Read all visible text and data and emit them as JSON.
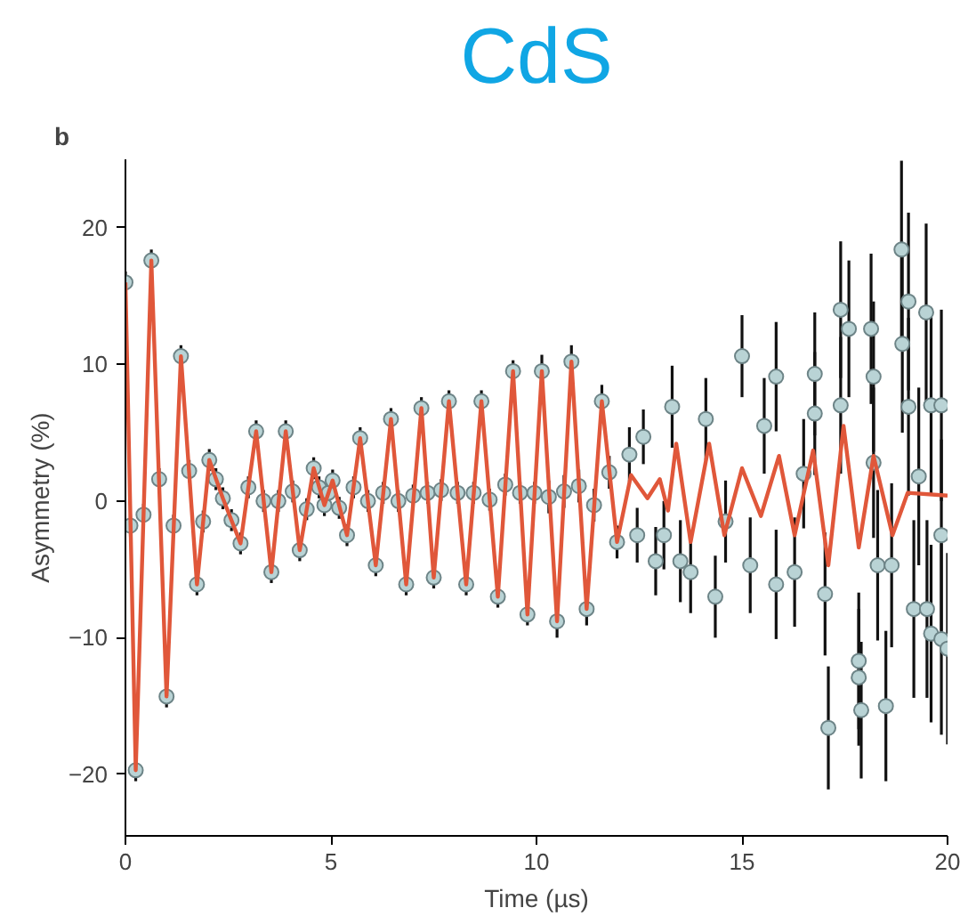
{
  "chart_data": {
    "type": "scatter",
    "title": "CdS",
    "xlabel": "Time (µs)",
    "ylabel": "Asymmetry (%)",
    "annotations": [
      "b"
    ],
    "xlim": [
      0,
      20
    ],
    "ylim": [
      -24.5,
      25
    ],
    "xticks": [
      0,
      5,
      10,
      15,
      20
    ],
    "yticks": [
      {
        "value": -20,
        "label": "−20"
      },
      {
        "value": -10,
        "label": "−10"
      },
      0,
      10,
      20
    ],
    "grid": false,
    "series": [
      {
        "color": "#b9d3d5",
        "marker": "circle",
        "x": [
          0,
          0.12,
          0.25,
          0.44,
          0.63,
          0.82,
          1.0,
          1.17,
          1.35,
          1.55,
          1.74,
          1.89,
          2.04,
          2.2,
          2.37,
          2.58,
          2.8,
          2.99,
          3.18,
          3.36,
          3.55,
          3.72,
          3.9,
          4.07,
          4.24,
          4.41,
          4.58,
          4.71,
          4.84,
          4.94,
          5.04,
          5.2,
          5.39,
          5.55,
          5.71,
          5.9,
          6.09,
          6.27,
          6.46,
          6.64,
          6.83,
          7.0,
          7.2,
          7.35,
          7.5,
          7.68,
          7.87,
          8.08,
          8.29,
          8.47,
          8.66,
          8.86,
          9.06,
          9.24,
          9.43,
          9.6,
          9.78,
          9.95,
          10.13,
          10.3,
          10.5,
          10.67,
          10.85,
          11.03,
          11.22,
          11.4,
          11.59,
          11.77,
          11.96,
          12.26,
          12.45,
          12.6,
          12.9,
          13.1,
          13.3,
          13.5,
          13.75,
          14.12,
          14.35,
          14.6,
          15.0,
          15.2,
          15.54,
          15.83,
          15.83,
          16.28,
          16.5,
          16.77,
          16.77,
          17.02,
          17.1,
          17.4,
          17.4,
          17.6,
          17.84,
          17.84,
          17.9,
          18.14,
          18.2,
          18.2,
          18.3,
          18.5,
          18.64,
          18.88,
          18.9,
          19.05,
          19.05,
          19.18,
          19.3,
          19.48,
          19.5,
          19.6,
          19.6,
          19.85,
          19.85,
          19.85,
          20
        ],
        "values": [
          16,
          -1.8,
          -19.7,
          -1.0,
          17.6,
          1.6,
          -14.3,
          -1.8,
          10.6,
          2.2,
          -6.1,
          -1.5,
          3.0,
          1.6,
          0.2,
          -1.4,
          -3.1,
          1.0,
          5.1,
          0,
          -5.2,
          0,
          5.1,
          0.7,
          -3.6,
          -0.6,
          2.4,
          1.0,
          -0.3,
          0.6,
          1.5,
          -0.5,
          -2.5,
          1.0,
          4.6,
          0,
          -4.7,
          0.6,
          6.0,
          0,
          -6.1,
          0.4,
          6.8,
          0.6,
          -5.6,
          0.8,
          7.3,
          0.6,
          -6.1,
          0.6,
          7.3,
          0.1,
          -7.0,
          1.2,
          9.5,
          0.6,
          -8.3,
          0.6,
          9.5,
          0.3,
          -8.8,
          0.7,
          10.2,
          1.1,
          -7.9,
          -0.3,
          7.3,
          2.1,
          -3.0,
          3.4,
          -2.5,
          4.7,
          -4.4,
          -2.5,
          6.9,
          -4.4,
          -5.2,
          6.0,
          -7.0,
          -1.5,
          10.6,
          -4.7,
          5.5,
          9.1,
          -6.1,
          -5.2,
          2,
          9.3,
          6.4,
          -6.8,
          -16.6,
          14.0,
          7.0,
          12.6,
          -11.7,
          -12.9,
          -15.3,
          12.6,
          9.1,
          2.8,
          -4.7,
          -15.0,
          -4.7,
          18.4,
          11.5,
          14.6,
          6.9,
          -7.9,
          1.8,
          13.8,
          -7.9,
          -9.7,
          7.0,
          7.0,
          -2.5,
          -10.1,
          -10.8
        ],
        "errors": [
          0.8,
          0.8,
          0.8,
          0.8,
          0.8,
          0.8,
          0.8,
          0.8,
          0.8,
          0.8,
          0.8,
          0.8,
          0.8,
          0.8,
          0.8,
          0.8,
          0.8,
          0.8,
          0.8,
          0.8,
          0.8,
          0.8,
          0.8,
          0.8,
          0.8,
          0.8,
          0.8,
          0.8,
          0.8,
          0.8,
          0.8,
          0.8,
          0.8,
          0.8,
          0.8,
          0.8,
          0.8,
          0.8,
          0.8,
          0.8,
          0.8,
          0.8,
          0.8,
          0.8,
          0.8,
          0.8,
          0.8,
          0.8,
          0.8,
          0.8,
          0.8,
          0.8,
          0.8,
          0.8,
          0.8,
          0.8,
          0.8,
          0.8,
          1.2,
          1.2,
          1.2,
          1.2,
          1.2,
          1.2,
          1.2,
          1.2,
          1.2,
          1.2,
          1.2,
          2,
          2,
          2,
          2.5,
          2.5,
          3,
          3,
          3,
          3,
          3,
          3,
          3,
          3.5,
          3.5,
          4,
          4,
          4,
          4,
          4.5,
          4.5,
          4.5,
          4.5,
          5,
          5,
          5,
          5,
          5,
          5,
          5.5,
          5.5,
          5.5,
          5.5,
          5.5,
          6,
          6.5,
          6.5,
          6.5,
          6.5,
          6.5,
          6.5,
          6.5,
          6.5,
          6.5,
          6.5,
          7,
          7,
          7,
          7
        ]
      },
      {
        "type": "line",
        "color": "#e0573a",
        "line_style": "solid",
        "x": [
          0,
          0.25,
          0.63,
          1.0,
          1.35,
          1.74,
          2.04,
          2.37,
          2.8,
          3.18,
          3.55,
          3.9,
          4.24,
          4.58,
          4.84,
          5.04,
          5.39,
          5.71,
          6.09,
          6.46,
          6.83,
          7.2,
          7.5,
          7.87,
          8.29,
          8.66,
          9.06,
          9.43,
          9.78,
          10.13,
          10.5,
          10.85,
          11.22,
          11.59,
          11.96,
          12.3,
          12.7,
          13.0,
          13.2,
          13.4,
          13.75,
          14.2,
          14.57,
          15.0,
          15.46,
          15.9,
          16.28,
          16.73,
          17.1,
          17.47,
          17.84,
          18.2,
          18.66,
          19.03,
          20
        ],
        "values": [
          16,
          -19.7,
          17.6,
          -14.3,
          10.6,
          -6.1,
          3.0,
          0.2,
          -3.1,
          5.1,
          -5.2,
          5.1,
          -3.6,
          2.4,
          -0.3,
          1.5,
          -2.5,
          4.6,
          -4.7,
          6.0,
          -6.1,
          6.8,
          -5.6,
          7.3,
          -6.1,
          7.3,
          -7.0,
          9.5,
          -8.3,
          9.5,
          -8.8,
          10.2,
          -7.9,
          7.3,
          -3.0,
          1.9,
          0.2,
          1.6,
          -0.7,
          4.2,
          -3.0,
          4.2,
          -2.5,
          2.4,
          -1.1,
          3.3,
          -2.5,
          3.7,
          -4.7,
          5.5,
          -3.4,
          3.3,
          -2.5,
          0.6,
          0.4
        ]
      }
    ]
  }
}
